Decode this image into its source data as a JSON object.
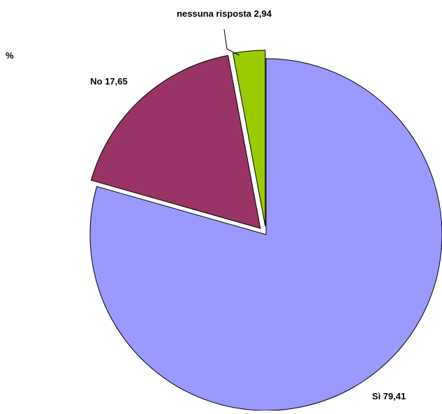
{
  "chart_data": {
    "type": "pie",
    "unit_label": "%",
    "title": "",
    "slices": [
      {
        "label": "Sì",
        "value": 79.41,
        "value_text": "79,41",
        "color": "#9999FF"
      },
      {
        "label": "No",
        "value": 17.65,
        "value_text": "17,65",
        "color": "#993366"
      },
      {
        "label": "nessuna risposta",
        "value": 2.94,
        "value_text": "2,94",
        "color": "#99CC00"
      }
    ],
    "legend": "none",
    "data_labels": "category and value"
  }
}
